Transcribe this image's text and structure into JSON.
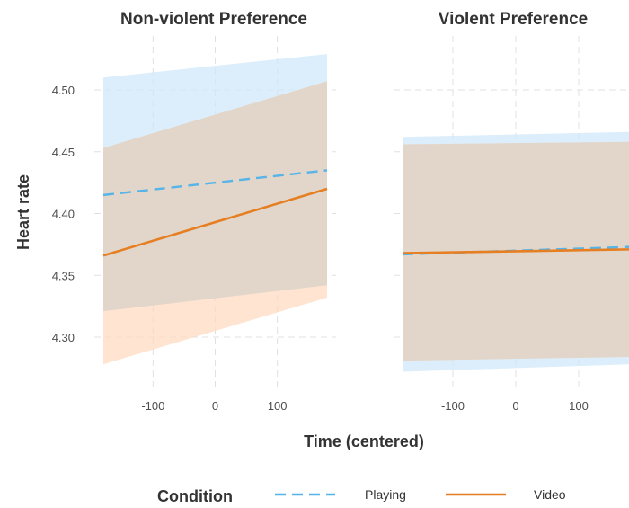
{
  "chart_data": {
    "type": "line",
    "ylabel": "Heart rate",
    "xlabel": "Time (centered)",
    "x_range": [
      -180,
      180
    ],
    "y_range": [
      4.272,
      4.54
    ],
    "x_ticks": [
      -100,
      0,
      100
    ],
    "y_ticks": [
      4.3,
      4.35,
      4.4,
      4.45,
      4.5
    ],
    "y_tick_labels": [
      "4.30",
      "4.35",
      "4.40",
      "4.45",
      "4.50"
    ],
    "x_tick_labels": [
      "-100",
      "0",
      "100"
    ],
    "grid": true,
    "legend": {
      "title": "Condition",
      "position": "bottom",
      "entries": [
        {
          "name": "Playing",
          "color": "#56b4e9",
          "linetype": "dashed"
        },
        {
          "name": "Video",
          "color": "#e67e22",
          "linetype": "solid"
        }
      ]
    },
    "colors": {
      "playing_line": "#56b4e9",
      "playing_band": "#cfe8f9",
      "video_line": "#e67e22",
      "video_band": "#fdd9bf",
      "overlap_band": "#e2d6ca"
    },
    "panels": [
      {
        "title": "Non-violent Preference",
        "x_limits": [
          -180,
          180
        ],
        "series": [
          {
            "name": "Playing",
            "x": [
              -180,
              180
            ],
            "y": [
              4.415,
              4.435
            ],
            "lower": [
              4.321,
              4.342
            ],
            "upper": [
              4.51,
              4.529
            ]
          },
          {
            "name": "Video",
            "x": [
              -180,
              180
            ],
            "y": [
              4.366,
              4.42
            ],
            "lower": [
              4.278,
              4.332
            ],
            "upper": [
              4.453,
              4.507
            ]
          }
        ]
      },
      {
        "title": "Violent Preference",
        "x_limits": [
          -180,
          180
        ],
        "series": [
          {
            "name": "Playing",
            "x": [
              -180,
              180
            ],
            "y": [
              4.367,
              4.373
            ],
            "lower": [
              4.272,
              4.278
            ],
            "upper": [
              4.462,
              4.466
            ]
          },
          {
            "name": "Video",
            "x": [
              -180,
              180
            ],
            "y": [
              4.368,
              4.371
            ],
            "lower": [
              4.281,
              4.284
            ],
            "upper": [
              4.456,
              4.458
            ]
          }
        ]
      }
    ]
  }
}
